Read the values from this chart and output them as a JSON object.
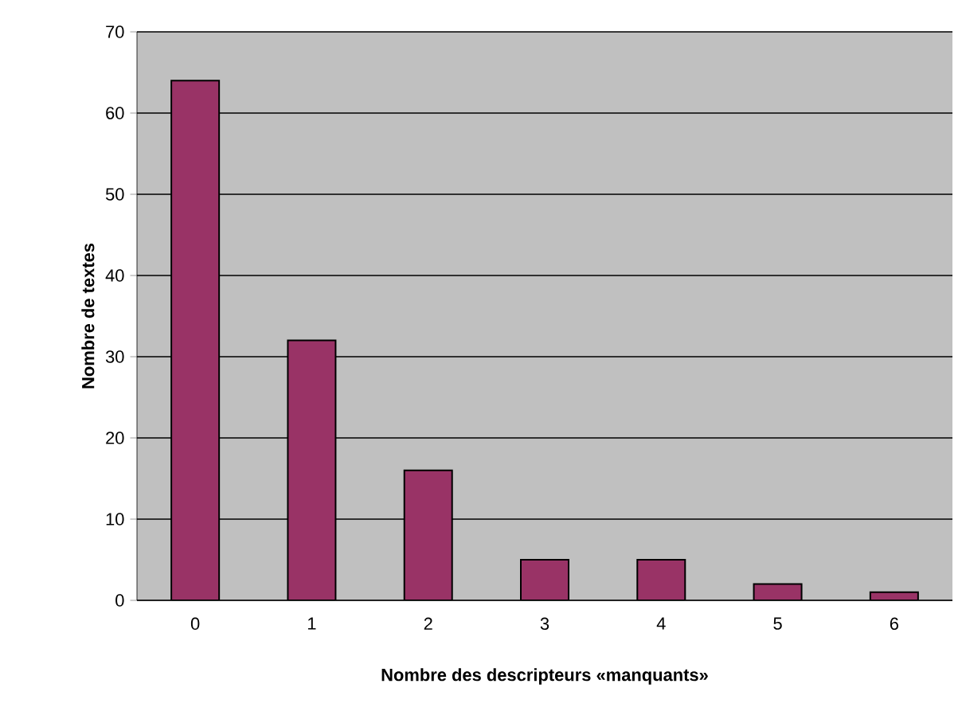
{
  "chart_data": {
    "type": "bar",
    "xlabel": "Nombre des descripteurs «manquants»",
    "ylabel": "Nombre de textes",
    "categories": [
      "0",
      "1",
      "2",
      "3",
      "4",
      "5",
      "6"
    ],
    "values": [
      64,
      32,
      16,
      5,
      5,
      2,
      1
    ],
    "color": "#993366",
    "ylim": [
      0,
      70
    ],
    "yticks": [
      0,
      10,
      20,
      30,
      40,
      50,
      60,
      70
    ],
    "grid": "y"
  }
}
